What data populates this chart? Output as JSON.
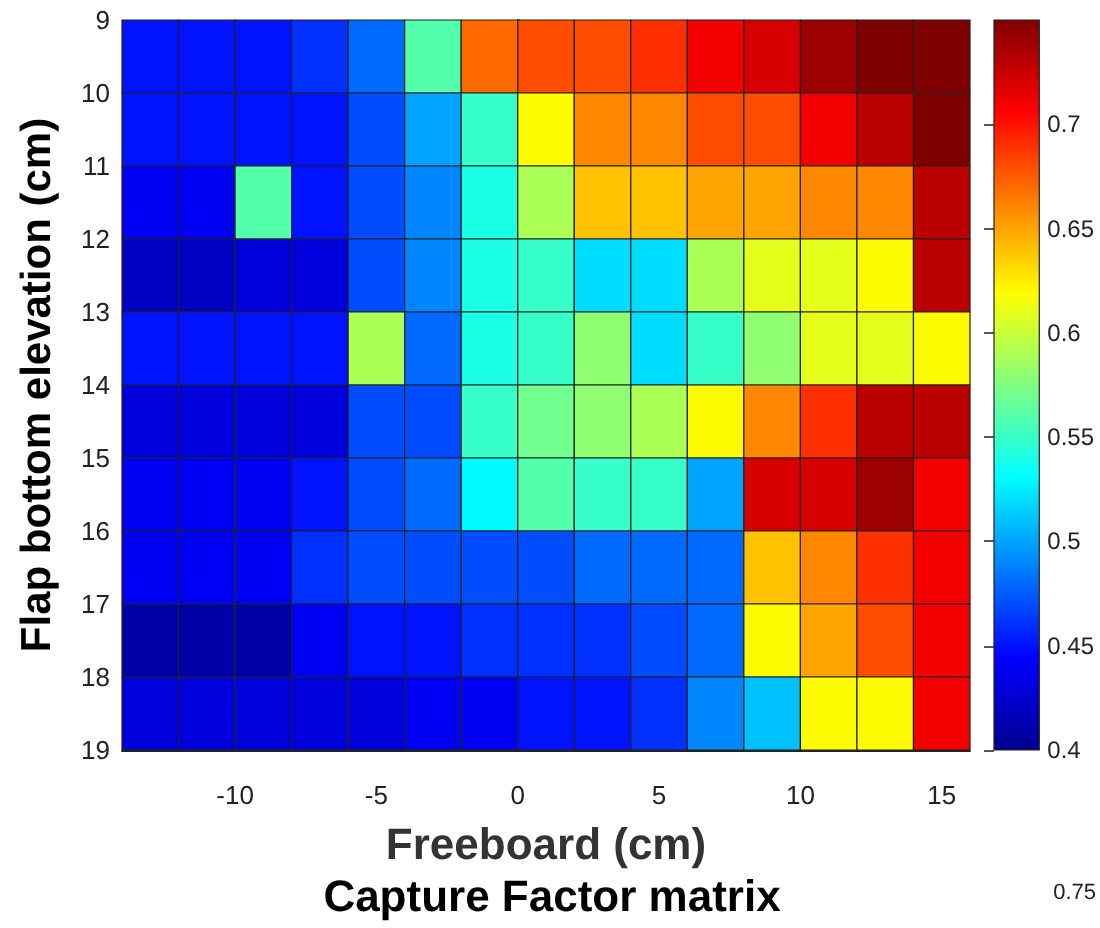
{
  "chart_data": {
    "type": "heatmap",
    "title": "Capture Factor matrix",
    "xlabel": "Freeboard (cm)",
    "ylabel": "Flap bottom elevation (cm)",
    "x": [
      -13,
      -11,
      -9,
      -7,
      -5,
      -3,
      -1,
      1,
      3,
      5,
      7,
      9,
      11,
      13,
      15
    ],
    "y": [
      9.5,
      10.5,
      11.5,
      12.5,
      13.5,
      14.5,
      15.5,
      16.5,
      17.5,
      18.5
    ],
    "xlim": [
      -14,
      16
    ],
    "xticks": [
      -10,
      -5,
      0,
      5,
      10,
      15
    ],
    "ylim": [
      19,
      9
    ],
    "yticks": [
      9,
      10,
      11,
      12,
      13,
      14,
      15,
      16,
      17,
      18,
      19
    ],
    "cells": [
      [
        0.45,
        0.45,
        0.45,
        0.46,
        0.48,
        0.56,
        0.67,
        0.68,
        0.68,
        0.69,
        0.71,
        0.72,
        0.74,
        0.75,
        0.75
      ],
      [
        0.45,
        0.45,
        0.45,
        0.45,
        0.47,
        0.5,
        0.55,
        0.62,
        0.66,
        0.66,
        0.68,
        0.68,
        0.71,
        0.73,
        0.75
      ],
      [
        0.44,
        0.44,
        0.56,
        0.45,
        0.47,
        0.49,
        0.54,
        0.59,
        0.64,
        0.64,
        0.65,
        0.65,
        0.66,
        0.66,
        0.73
      ],
      [
        0.42,
        0.42,
        0.43,
        0.43,
        0.47,
        0.49,
        0.54,
        0.55,
        0.52,
        0.52,
        0.59,
        0.61,
        0.61,
        0.62,
        0.73
      ],
      [
        0.45,
        0.45,
        0.45,
        0.45,
        0.59,
        0.48,
        0.54,
        0.55,
        0.58,
        0.52,
        0.55,
        0.58,
        0.61,
        0.61,
        0.62
      ],
      [
        0.43,
        0.43,
        0.43,
        0.43,
        0.47,
        0.47,
        0.55,
        0.57,
        0.58,
        0.59,
        0.62,
        0.66,
        0.69,
        0.73,
        0.73
      ],
      [
        0.44,
        0.44,
        0.44,
        0.45,
        0.47,
        0.48,
        0.53,
        0.56,
        0.55,
        0.55,
        0.5,
        0.72,
        0.72,
        0.74,
        0.71
      ],
      [
        0.44,
        0.44,
        0.44,
        0.46,
        0.47,
        0.47,
        0.47,
        0.47,
        0.48,
        0.48,
        0.48,
        0.64,
        0.66,
        0.69,
        0.71
      ],
      [
        0.41,
        0.41,
        0.41,
        0.44,
        0.45,
        0.45,
        0.46,
        0.46,
        0.46,
        0.47,
        0.48,
        0.62,
        0.65,
        0.68,
        0.71
      ],
      [
        0.43,
        0.43,
        0.43,
        0.43,
        0.43,
        0.44,
        0.44,
        0.45,
        0.45,
        0.46,
        0.49,
        0.51,
        0.62,
        0.62,
        0.71
      ]
    ],
    "clim": [
      0.4,
      0.75
    ],
    "cticks": [
      0.4,
      0.45,
      0.5,
      0.55,
      0.6,
      0.65,
      0.7
    ],
    "annotations": [
      "0.75"
    ]
  }
}
